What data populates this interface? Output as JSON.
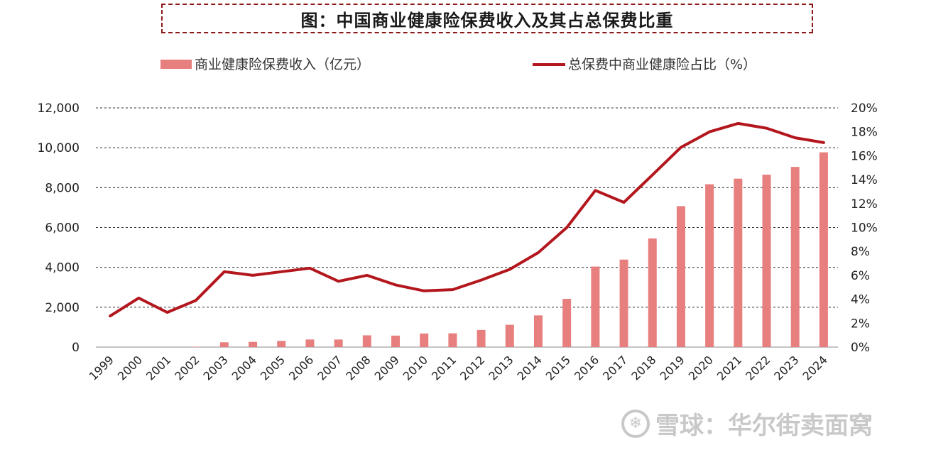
{
  "chart_data": {
    "type": "bar",
    "title": "图：中国商业健康险保费收入及其占总保费比重",
    "categories": [
      "1999",
      "2000",
      "2001",
      "2002",
      "2003",
      "2004",
      "2005",
      "2006",
      "2007",
      "2008",
      "2009",
      "2010",
      "2011",
      "2012",
      "2013",
      "2014",
      "2015",
      "2016",
      "2017",
      "2018",
      "2019",
      "2020",
      "2021",
      "2022",
      "2023",
      "2024"
    ],
    "series": [
      {
        "name": "商业健康险保费收入（亿元）",
        "type": "bar",
        "axis": "left",
        "color": "#e87f7f",
        "values": [
          0,
          0,
          0,
          20,
          240,
          260,
          310,
          380,
          380,
          590,
          575,
          680,
          690,
          860,
          1120,
          1590,
          2420,
          4040,
          4390,
          5450,
          7070,
          8170,
          8450,
          8650,
          9040,
          9770
        ]
      },
      {
        "name": "总保费中商业健康险占比（%）",
        "type": "line",
        "axis": "right",
        "color": "#b3171d",
        "values": [
          2.6,
          4.1,
          2.9,
          3.9,
          6.3,
          6.0,
          6.3,
          6.6,
          5.5,
          6.0,
          5.2,
          4.7,
          4.8,
          5.6,
          6.5,
          7.9,
          10.0,
          13.1,
          12.1,
          14.4,
          16.7,
          18.0,
          18.7,
          18.3,
          17.5,
          17.1
        ]
      }
    ],
    "ylim_left": [
      0,
      12000
    ],
    "yticks_left": [
      "0",
      "2,000",
      "4,000",
      "6,000",
      "8,000",
      "10,000",
      "12,000"
    ],
    "ylim_right": [
      0,
      20
    ],
    "yticks_right": [
      "0%",
      "2%",
      "4%",
      "6%",
      "8%",
      "10%",
      "12%",
      "14%",
      "16%",
      "18%",
      "20%"
    ],
    "legend_position": "top",
    "grid": "horizontal-dashed"
  },
  "watermark": {
    "logo": "❄",
    "text": "雪球：华尔街卖面窝"
  }
}
